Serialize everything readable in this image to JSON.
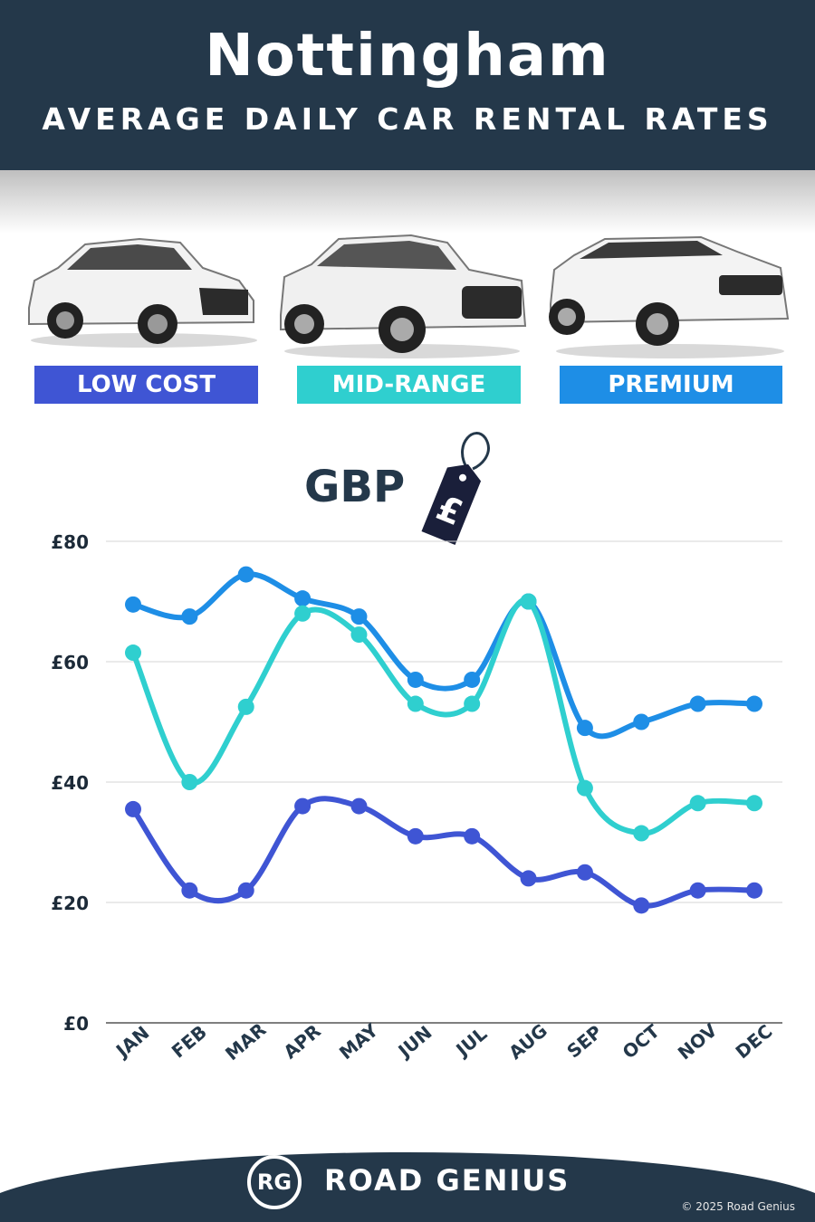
{
  "header": {
    "title": "Nottingham",
    "subtitle": "AVERAGE DAILY CAR RENTAL RATES"
  },
  "categories_legend": [
    {
      "label": "LOW COST",
      "color": "#3f55d4"
    },
    {
      "label": "MID-RANGE",
      "color": "#2fcfcf"
    },
    {
      "label": "PREMIUM",
      "color": "#1e8ee6"
    }
  ],
  "currency_label": "GBP",
  "currency_symbol": "£",
  "footer": {
    "logo_initials": "RG",
    "brand": "ROAD GENIUS",
    "copyright": "© 2025 Road Genius"
  },
  "chart_data": {
    "type": "line",
    "categories": [
      "JAN",
      "FEB",
      "MAR",
      "APR",
      "MAY",
      "JUN",
      "JUL",
      "AUG",
      "SEP",
      "OCT",
      "NOV",
      "DEC"
    ],
    "series": [
      {
        "name": "PREMIUM",
        "color": "#1e8ee6",
        "values": [
          69.5,
          67.5,
          74.5,
          70.5,
          67.5,
          57,
          57,
          70,
          49,
          50,
          53,
          53
        ]
      },
      {
        "name": "MID-RANGE",
        "color": "#2fcfcf",
        "values": [
          61.5,
          40,
          52.5,
          68,
          64.5,
          53,
          53,
          70,
          39,
          31.5,
          36.5,
          36.5
        ]
      },
      {
        "name": "LOW COST",
        "color": "#3f55d4",
        "values": [
          35.5,
          22,
          22,
          36,
          36,
          31,
          31,
          24,
          25,
          19.5,
          22,
          22
        ]
      }
    ],
    "yticks": [
      "£0",
      "£20",
      "£40",
      "£60",
      "£80"
    ],
    "ylim": [
      0,
      80
    ],
    "grid": true
  }
}
